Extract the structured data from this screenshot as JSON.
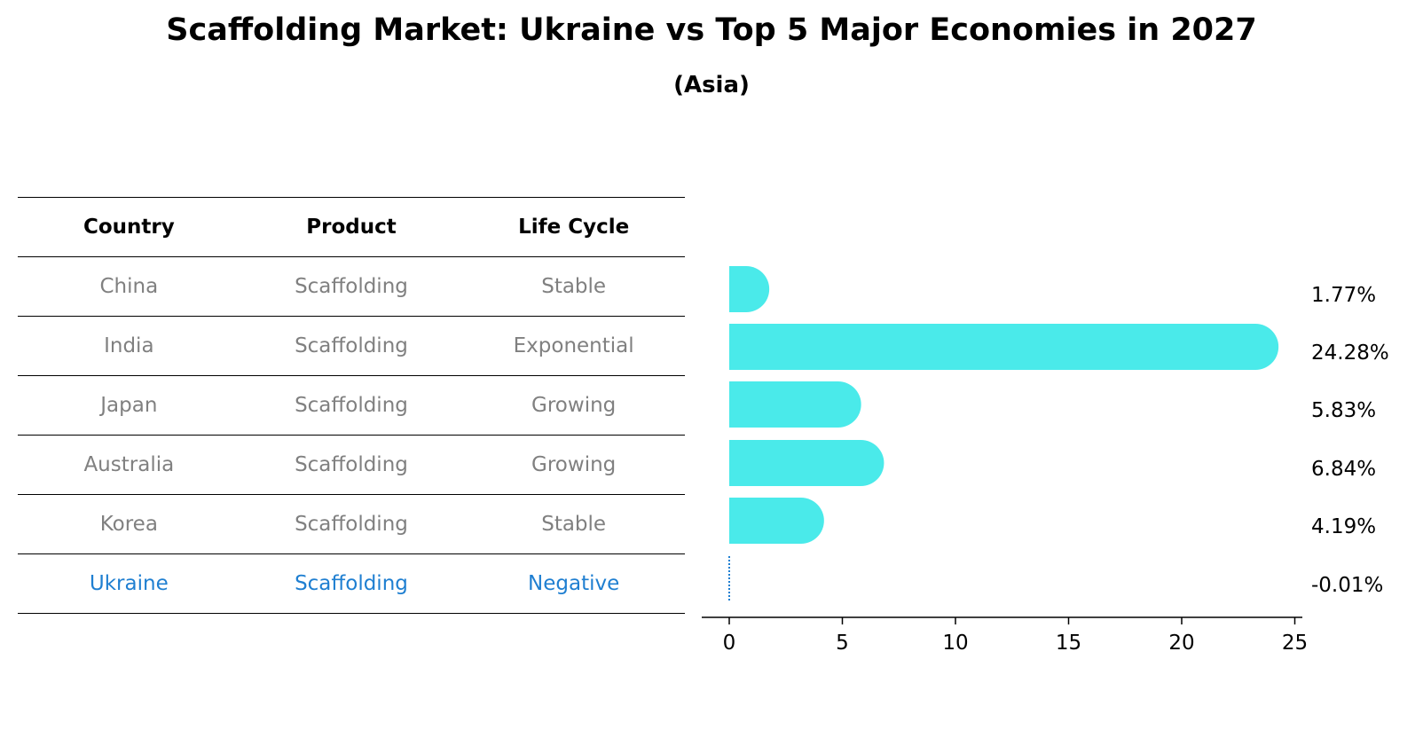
{
  "title": "Scaffolding Market: Ukraine vs Top 5 Major Economies in 2027",
  "subtitle": "(Asia)",
  "table": {
    "headers": [
      "Country",
      "Product",
      "Life Cycle"
    ],
    "rows": [
      {
        "country": "China",
        "product": "Scaffolding",
        "life_cycle": "Stable"
      },
      {
        "country": "India",
        "product": "Scaffolding",
        "life_cycle": "Exponential"
      },
      {
        "country": "Japan",
        "product": "Scaffolding",
        "life_cycle": "Growing"
      },
      {
        "country": "Australia",
        "product": "Scaffolding",
        "life_cycle": "Growing"
      },
      {
        "country": "Korea",
        "product": "Scaffolding",
        "life_cycle": "Stable"
      },
      {
        "country": "Ukraine",
        "product": "Scaffolding",
        "life_cycle": "Negative"
      }
    ]
  },
  "colors": {
    "bar": "#4aeaea",
    "highlight": "#1f7fd1",
    "muted_text": "#808080"
  },
  "chart_data": {
    "type": "bar",
    "orientation": "horizontal",
    "categories": [
      "China",
      "India",
      "Japan",
      "Australia",
      "Korea",
      "Ukraine"
    ],
    "values": [
      1.77,
      24.28,
      5.83,
      6.84,
      4.19,
      -0.01
    ],
    "value_labels": [
      "1.77%",
      "24.28%",
      "5.83%",
      "6.84%",
      "4.19%",
      "-0.01%"
    ],
    "xlim": [
      -1.25,
      25.5
    ],
    "xticks": [
      0,
      5,
      10,
      15,
      20,
      25
    ],
    "xlabel": "",
    "ylabel": "",
    "grid": false
  }
}
